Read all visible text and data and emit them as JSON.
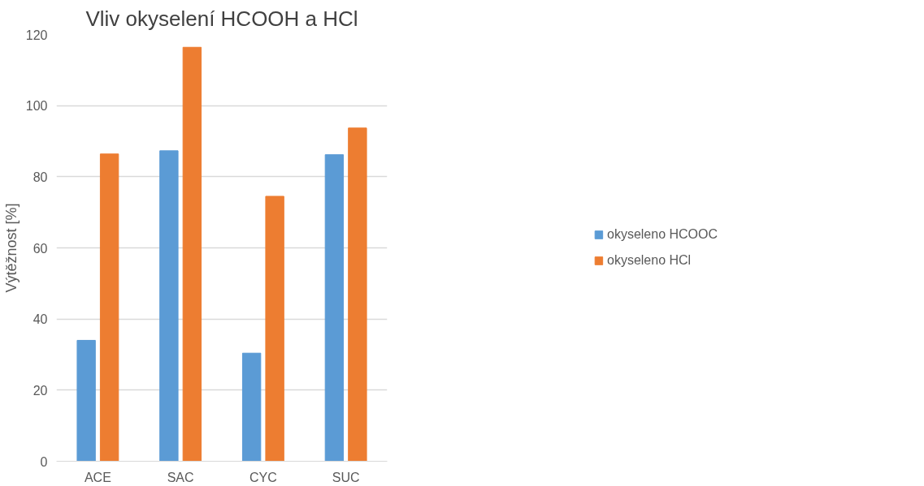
{
  "chart_data": {
    "type": "bar",
    "title": "Vliv okyselení HCOOH a HCl",
    "ylabel": "Výtěžnost [%]",
    "categories": [
      "ACE",
      "SAC",
      "CYC",
      "SUC"
    ],
    "series": [
      {
        "name": "okyseleno HCOOC",
        "color": "#5b9bd5",
        "values": [
          34.0,
          87.3,
          30.4,
          86.2
        ]
      },
      {
        "name": "okyseleno HCl",
        "color": "#ed7d31",
        "values": [
          86.4,
          116.4,
          74.5,
          93.7
        ]
      }
    ],
    "ylim": [
      0,
      120
    ],
    "yticks": [
      0,
      20,
      40,
      60,
      80,
      100,
      120
    ],
    "grid": "y",
    "legend": "right"
  }
}
